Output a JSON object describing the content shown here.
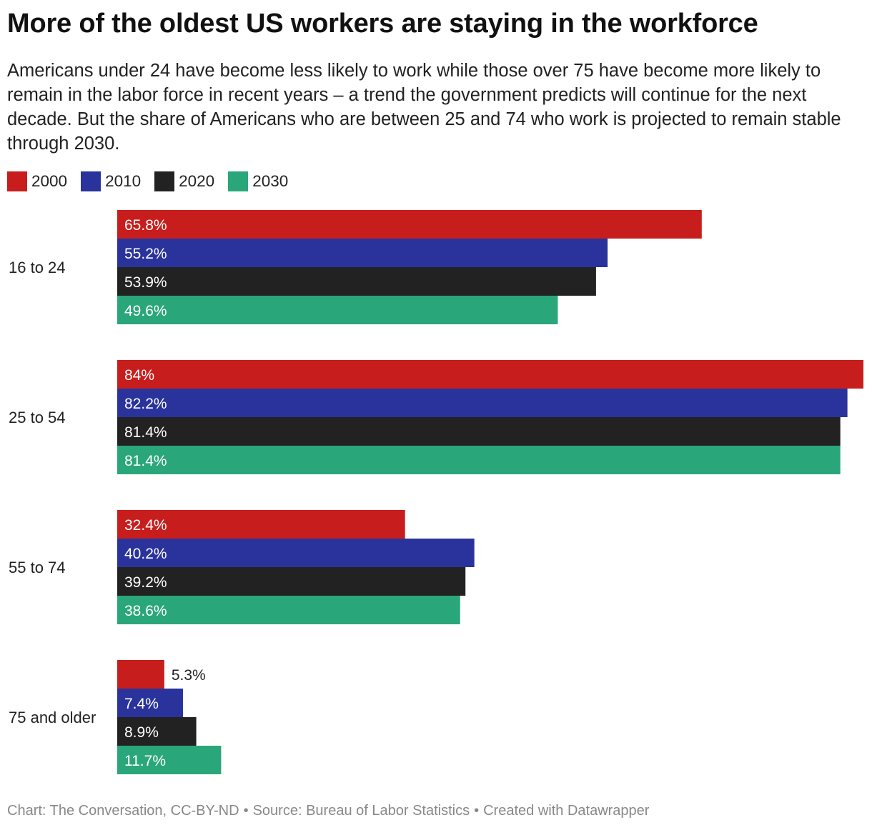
{
  "chart_data": {
    "type": "bar",
    "orientation": "horizontal",
    "title": "More of the oldest US workers are staying in the workforce",
    "subtitle": "Americans under 24 have become less likely to work while those over 75 have become more likely to remain in the labor force in recent years – a trend the government predicts will continue for the next decade. But the share of Americans who are between 25 and 74 who work is projected to remain stable through 2030.",
    "categories": [
      "16 to 24",
      "25 to 54",
      "55 to 74",
      "75 and older"
    ],
    "series": [
      {
        "name": "2000",
        "color": "#c71e1d",
        "values": [
          65.8,
          84,
          32.4,
          5.3
        ],
        "labels": [
          "65.8%",
          "84%",
          "32.4%",
          "5.3%"
        ]
      },
      {
        "name": "2010",
        "color": "#29339b",
        "values": [
          55.2,
          82.2,
          40.2,
          7.4
        ],
        "labels": [
          "55.2%",
          "82.2%",
          "40.2%",
          "7.4%"
        ]
      },
      {
        "name": "2020",
        "color": "#222222",
        "values": [
          53.9,
          81.4,
          39.2,
          8.9
        ],
        "labels": [
          "53.9%",
          "81.4%",
          "39.2%",
          "8.9%"
        ]
      },
      {
        "name": "2030",
        "color": "#2aa67b",
        "values": [
          49.6,
          81.4,
          38.6,
          11.7
        ],
        "labels": [
          "49.6%",
          "81.4%",
          "38.6%",
          "11.7%"
        ]
      }
    ],
    "xlim": [
      0,
      84
    ],
    "grid": false,
    "legend": "top-left"
  },
  "footer": {
    "credit": "Chart: The Conversation, CC-BY-ND",
    "source": "Source: Bureau of Labor Statistics",
    "tool": "Created with Datawrapper",
    "separator": "•"
  }
}
